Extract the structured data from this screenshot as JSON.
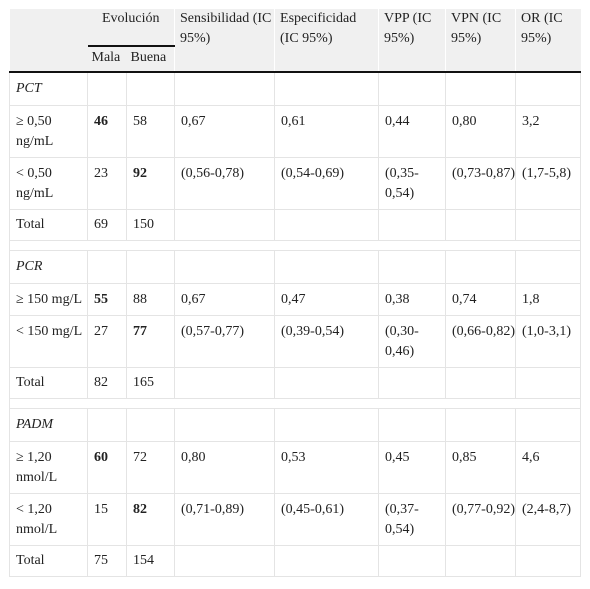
{
  "header": {
    "evolucion": "Evolución",
    "mala": "Mala",
    "buena": "Buena",
    "sensibilidad": "Sensibilidad (IC 95%)",
    "especificidad": "Especificidad (IC 95%)",
    "vpp": "VPP (IC 95%)",
    "vpn": "VPN (IC 95%)",
    "or": "OR (IC 95%)"
  },
  "groups": [
    {
      "name": "PCT",
      "rows": [
        {
          "label": "≥ 0,50 ng/mL",
          "mala": "46",
          "buena": "58",
          "sens": "0,67",
          "esp": "0,61",
          "vpp": "0,44",
          "vpn": "0,80",
          "or": "3,2"
        },
        {
          "label": "< 0,50 ng/mL",
          "mala": "23",
          "buena": "92",
          "sens": "(0,56-0,78)",
          "esp": "(0,54-0,69)",
          "vpp": "(0,35-0,54)",
          "vpn": "(0,73-0,87)",
          "or": "(1,7-5,8)"
        }
      ],
      "total": {
        "label": "Total",
        "mala": "69",
        "buena": "150"
      }
    },
    {
      "name": "PCR",
      "rows": [
        {
          "label": "≥ 150 mg/L",
          "mala": "55",
          "buena": "88",
          "sens": "0,67",
          "esp": "0,47",
          "vpp": "0,38",
          "vpn": "0,74",
          "or": "1,8"
        },
        {
          "label": "< 150 mg/L",
          "mala": "27",
          "buena": "77",
          "sens": "(0,57-0,77)",
          "esp": "(0,39-0,54)",
          "vpp": "(0,30-0,46)",
          "vpn": "(0,66-0,82)",
          "or": "(1,0-3,1)"
        }
      ],
      "total": {
        "label": "Total",
        "mala": "82",
        "buena": "165"
      }
    },
    {
      "name": "PADM",
      "rows": [
        {
          "label": "≥ 1,20 nmol/L",
          "mala": "60",
          "buena": "72",
          "sens": "0,80",
          "esp": "0,53",
          "vpp": "0,45",
          "vpn": "0,85",
          "or": "4,6"
        },
        {
          "label": "< 1,20 nmol/L",
          "mala": "15",
          "buena": "82",
          "sens": "(0,71-0,89)",
          "esp": "(0,45-0,61)",
          "vpp": "(0,37-0,54)",
          "vpn": "(0,77-0,92)",
          "or": "(2,4-8,7)"
        }
      ],
      "total": {
        "label": "Total",
        "mala": "75",
        "buena": "154"
      }
    }
  ]
}
